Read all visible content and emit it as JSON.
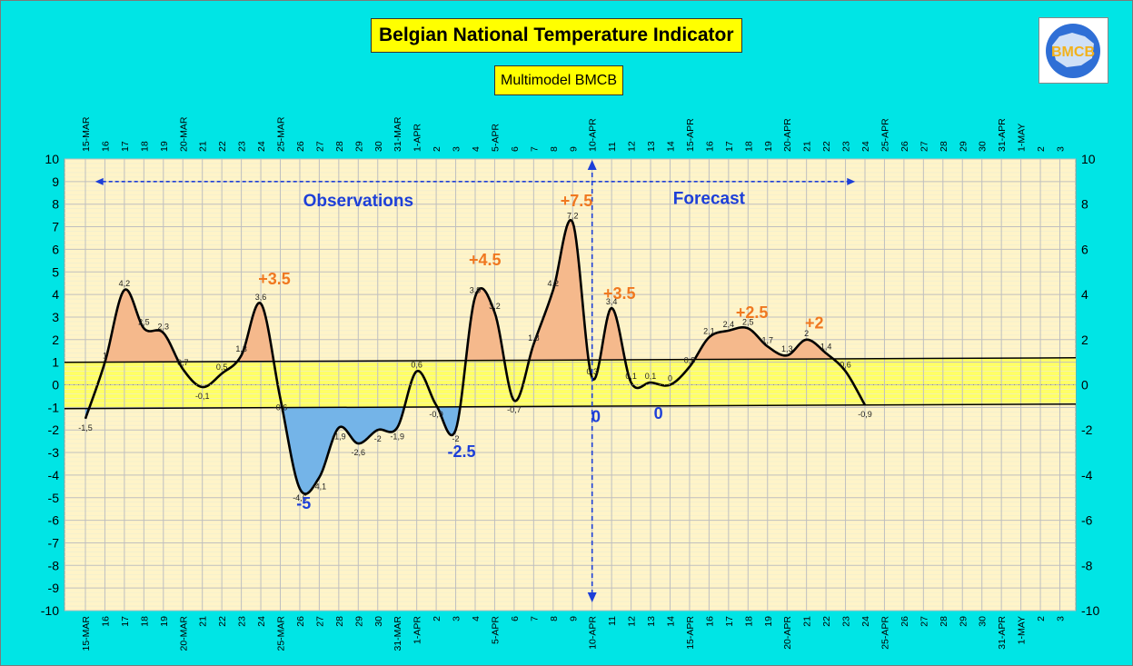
{
  "title": "Belgian National Temperature Indicator",
  "subtitle": "Multimodel BMCB",
  "logo_text": "BMCB",
  "colors": {
    "background": "#00e5e5",
    "plot_background": "#fff4c8",
    "normal_band": "#ffff66",
    "warm_fill": "#f5b98c",
    "cold_fill": "#74b4e8",
    "curve": "#000000",
    "peak_warm_label": "#f07820",
    "peak_cold_label": "#1d3fd8",
    "section_label": "#1d3fd8",
    "divider": "#1d3fd8"
  },
  "chart_data": {
    "type": "area",
    "ylim": [
      -10,
      10
    ],
    "left_y_ticks": [
      "-10",
      "-9",
      "-8",
      "-7",
      "-6",
      "-5",
      "-4",
      "-3",
      "-2",
      "-1",
      "0",
      "1",
      "2",
      "3",
      "4",
      "5",
      "6",
      "7",
      "8",
      "9",
      "10"
    ],
    "right_y_ticks": [
      "-10",
      "-8",
      "-6",
      "-4",
      "-2",
      "0",
      "2",
      "4",
      "6",
      "8",
      "10"
    ],
    "x_tick_labels": [
      "15-MAR",
      "16",
      "17",
      "18",
      "19",
      "20-MAR",
      "21",
      "22",
      "23",
      "24",
      "25-MAR",
      "26",
      "27",
      "28",
      "29",
      "30",
      "31-MAR",
      "1-APR",
      "2",
      "3",
      "4",
      "5-APR",
      "6",
      "7",
      "8",
      "9",
      "10-APR",
      "11",
      "12",
      "13",
      "14",
      "15-APR",
      "16",
      "17",
      "18",
      "19",
      "20-APR",
      "21",
      "22",
      "23",
      "24",
      "25-APR",
      "26",
      "27",
      "28",
      "29",
      "30",
      "31-APR",
      "1-MAY",
      "2",
      "3"
    ],
    "series": [
      {
        "x": [
          0,
          1,
          2,
          3,
          4,
          5,
          6,
          7,
          8,
          9,
          10,
          11,
          12,
          13,
          14,
          15,
          16,
          17,
          18,
          19,
          20,
          21,
          22,
          23,
          24,
          25,
          26,
          27,
          28,
          29,
          30,
          31,
          32,
          33,
          34,
          35,
          36,
          37,
          38,
          39,
          40
        ],
        "values": [
          -1.5,
          1,
          4.2,
          2.5,
          2.3,
          0.7,
          -0.1,
          0.5,
          1.3,
          3.6,
          -0.6,
          -4.6,
          -4.1,
          -1.9,
          -2.6,
          -2,
          -1.9,
          0.6,
          -0.9,
          -2,
          3.9,
          3.2,
          -0.7,
          1.8,
          4.2,
          7.2,
          0.3,
          3.4,
          0.1,
          0.1,
          0,
          0.8,
          2.1,
          2.4,
          2.5,
          1.7,
          1.3,
          2,
          1.4,
          0.6,
          -0.9
        ],
        "labels": [
          "-1,5",
          "1",
          "4,2",
          "2,5",
          "2,3",
          "0,7",
          "-0,1",
          "0,5",
          "1,3",
          "3,6",
          "-0,6",
          "-4,6",
          "-4,1",
          "-1,9",
          "-2,6",
          "-2",
          "-1,9",
          "0,6",
          "-0,9",
          "-2",
          "3,9",
          "3,2",
          "-0,7",
          "1,8",
          "4,2",
          "7,2",
          "0,3",
          "3,4",
          "0,1",
          "0,1",
          "0",
          "0,8",
          "2,1",
          "2,4",
          "2,5",
          "1,7",
          "1,3",
          "2",
          "1,4",
          "0,6",
          "-0,9"
        ]
      }
    ],
    "normal_band": {
      "upper": {
        "x": [
          0,
          52
        ],
        "values": [
          1,
          1.2
        ]
      },
      "lower": {
        "x": [
          0,
          52
        ],
        "values": [
          -1.05,
          -0.85
        ]
      }
    },
    "divider_x": 26,
    "section_labels": [
      {
        "text": "Observations",
        "x": 14,
        "y": 7.9
      },
      {
        "text": "Forecast",
        "x": 32,
        "y": 8.0
      }
    ],
    "period_arrow": {
      "x_start": 0.5,
      "x_end": 39.5,
      "y": 9.0
    },
    "annotations": [
      {
        "text": "+3.5",
        "x": 9.7,
        "y": 4.45,
        "kind": "warm"
      },
      {
        "text": "-5",
        "x": 11.2,
        "y": -5.5,
        "kind": "cold"
      },
      {
        "text": "+4.5",
        "x": 20.5,
        "y": 5.3,
        "kind": "warm"
      },
      {
        "text": "-2.5",
        "x": 19.3,
        "y": -3.2,
        "kind": "cold"
      },
      {
        "text": "+7.5",
        "x": 25.2,
        "y": 7.9,
        "kind": "warm"
      },
      {
        "text": "+3.5",
        "x": 27.4,
        "y": 3.8,
        "kind": "warm"
      },
      {
        "text": "0",
        "x": 26.2,
        "y": -1.65,
        "kind": "cold"
      },
      {
        "text": "0",
        "x": 29.4,
        "y": -1.5,
        "kind": "cold"
      },
      {
        "text": "+2.5",
        "x": 34.2,
        "y": 2.95,
        "kind": "warm"
      },
      {
        "text": "+2",
        "x": 37.4,
        "y": 2.5,
        "kind": "warm"
      }
    ]
  }
}
